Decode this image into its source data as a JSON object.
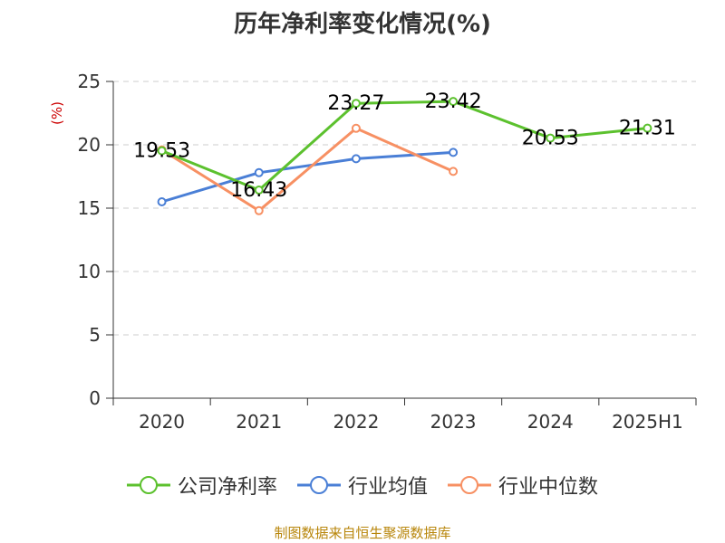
{
  "title": "历年净利率变化情况(%)",
  "source_note": "制图数据来自恒生聚源数据库",
  "chart_data": {
    "type": "line",
    "title": "历年净利率变化情况(%)",
    "xlabel": "",
    "ylabel": "(%)",
    "categories": [
      "2020",
      "2021",
      "2022",
      "2023",
      "2024",
      "2025H1"
    ],
    "ylim": [
      0,
      25
    ],
    "yticks": [
      0,
      5,
      10,
      15,
      20,
      25
    ],
    "grid": "horizontal dashed",
    "legend_position": "bottom",
    "series": [
      {
        "name": "公司净利率",
        "color": "#5cc12e",
        "values": [
          19.53,
          16.43,
          23.27,
          23.42,
          20.53,
          21.31
        ],
        "labels": [
          "19.53",
          "16.43",
          "23.27",
          "23.42",
          "20.53",
          "21.31"
        ]
      },
      {
        "name": "行业均值",
        "color": "#4a7fd6",
        "values": [
          15.5,
          17.8,
          18.9,
          19.4,
          null,
          null
        ],
        "labels": []
      },
      {
        "name": "行业中位数",
        "color": "#f79063",
        "values": [
          19.6,
          14.8,
          21.3,
          17.9,
          null,
          null
        ],
        "labels": []
      }
    ]
  }
}
